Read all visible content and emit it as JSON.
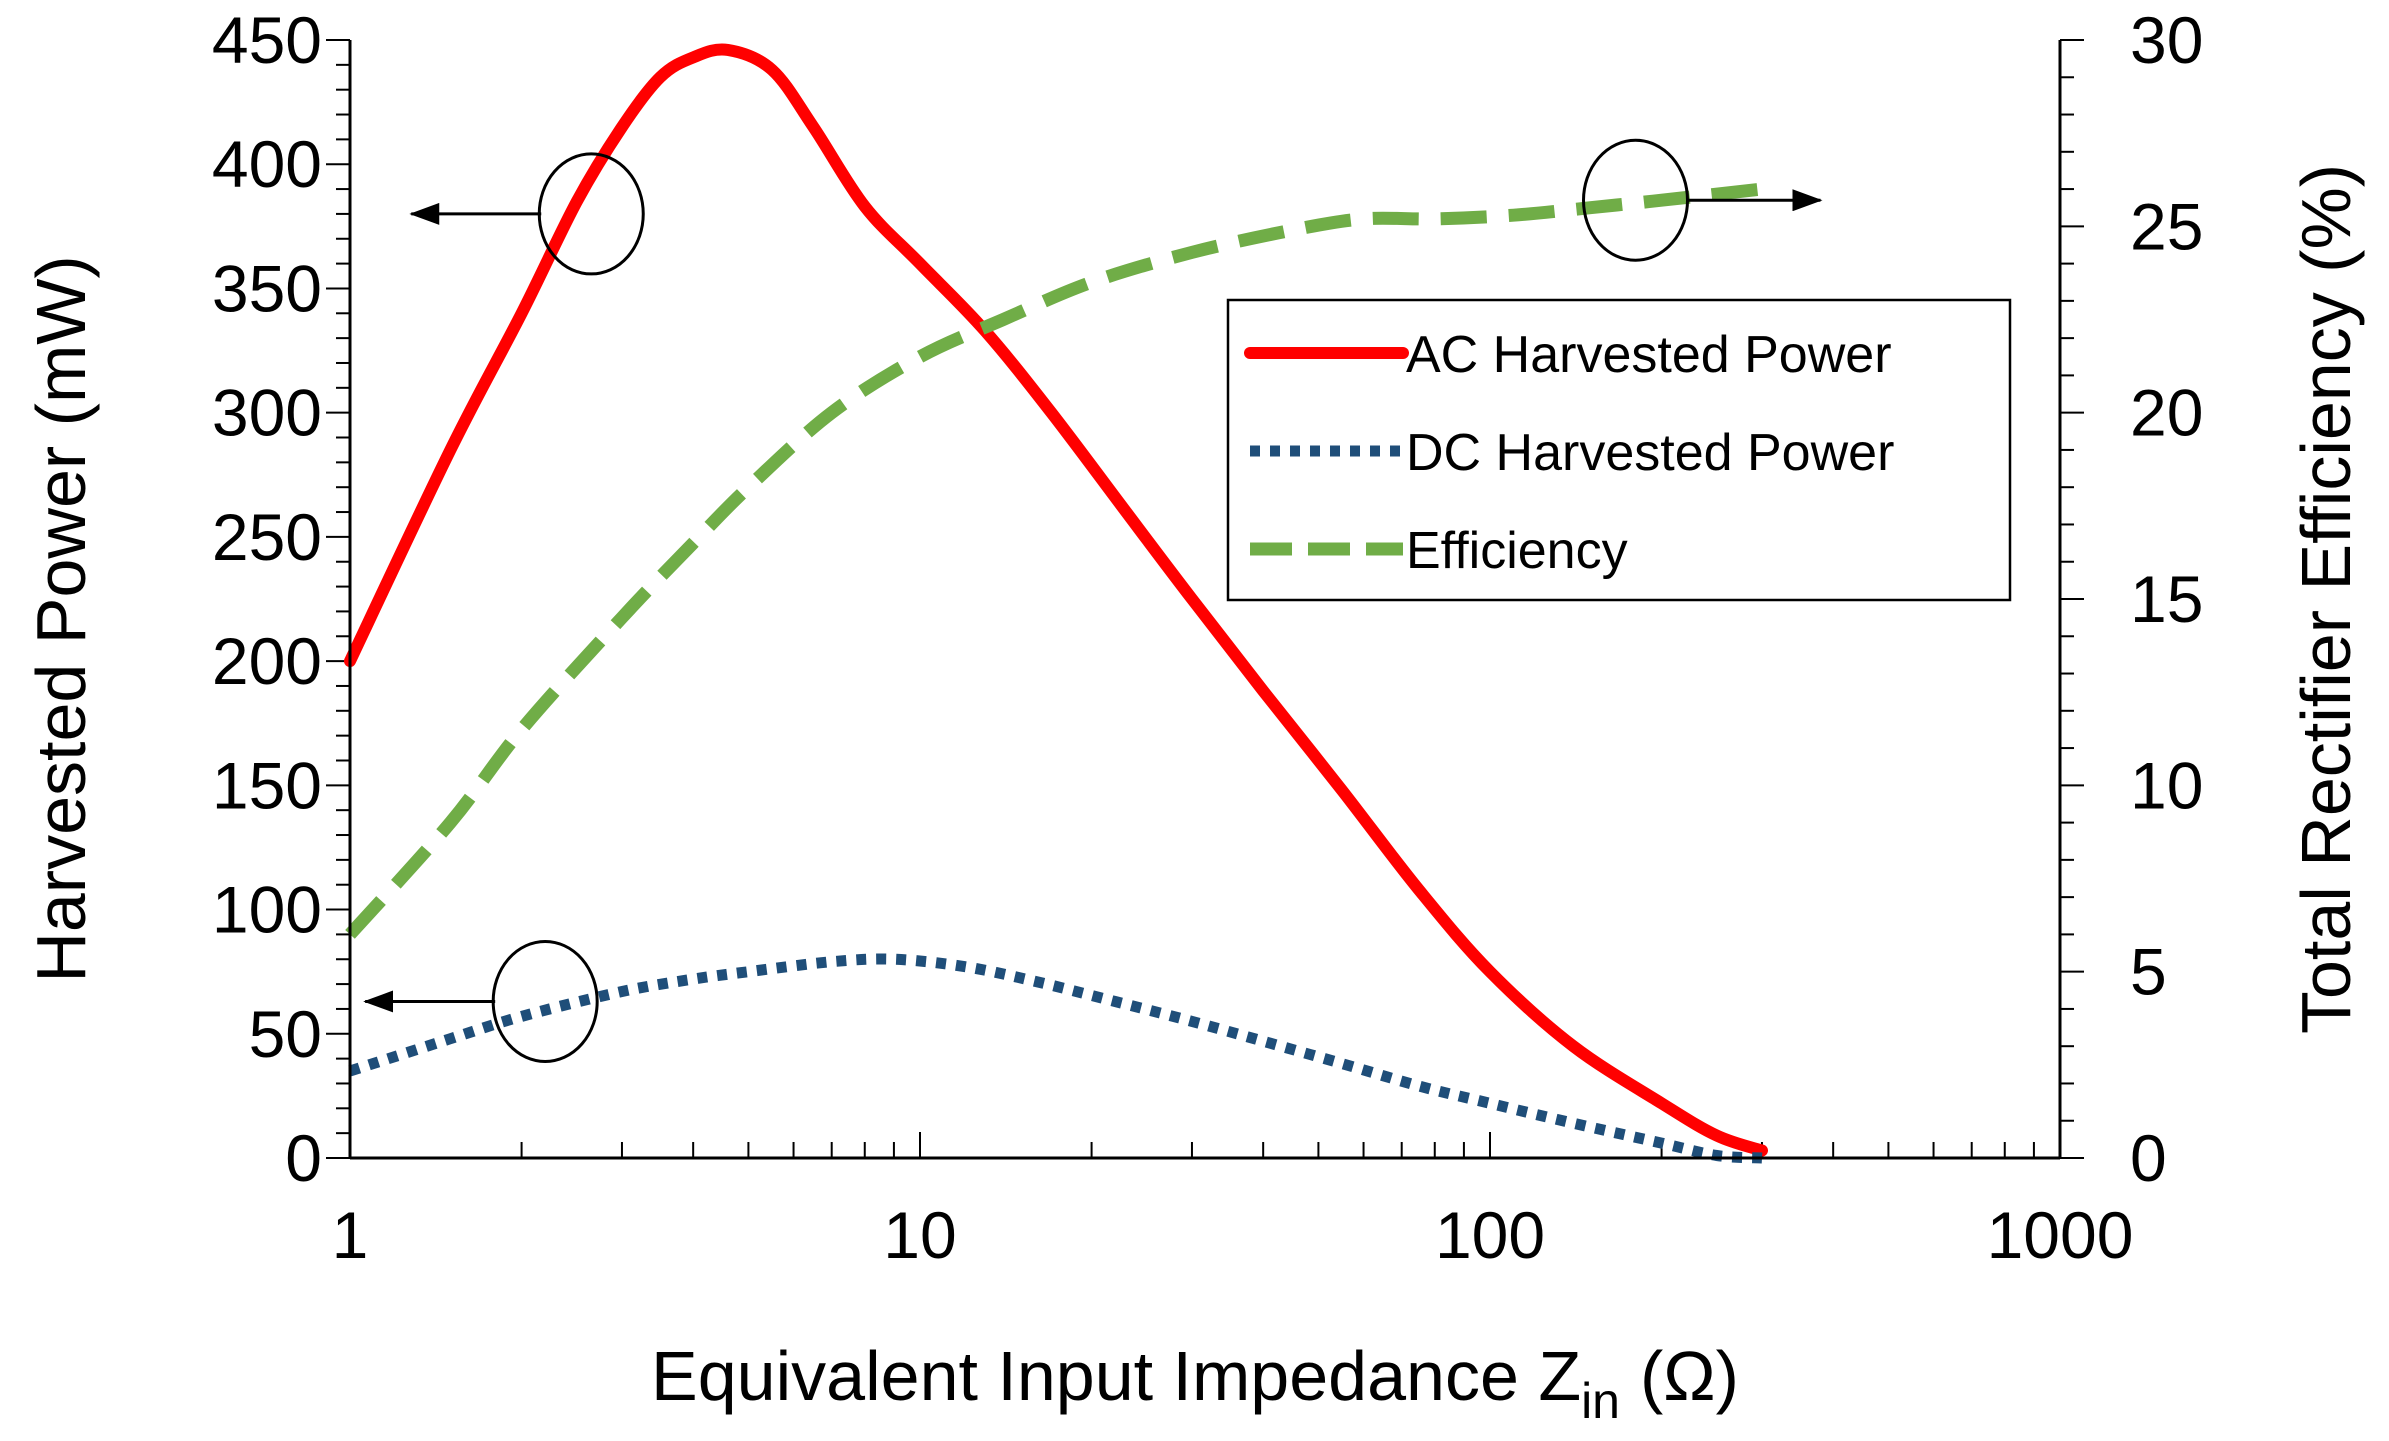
{
  "chart_data": {
    "type": "line",
    "xscale": "log",
    "xlabel": "Equivalent Input Impedance Z",
    "xlabel_sub": "in",
    "xlabel_unit": "(Ω)",
    "ylabel": "Harvested Power (mW)",
    "y2label": "Total Rectifier Efficiency (%)",
    "xlim": [
      1,
      1000
    ],
    "ylim": [
      0,
      450
    ],
    "y2lim": [
      0,
      30
    ],
    "x_ticks": [
      {
        "value": 1,
        "label": "1"
      },
      {
        "value": 10,
        "label": "10"
      },
      {
        "value": 100,
        "label": "100"
      },
      {
        "value": 1000,
        "label": "1000"
      }
    ],
    "y_ticks": [
      {
        "value": 0,
        "label": "0"
      },
      {
        "value": 50,
        "label": "50"
      },
      {
        "value": 100,
        "label": "100"
      },
      {
        "value": 150,
        "label": "150"
      },
      {
        "value": 200,
        "label": "200"
      },
      {
        "value": 250,
        "label": "250"
      },
      {
        "value": 300,
        "label": "300"
      },
      {
        "value": 350,
        "label": "350"
      },
      {
        "value": 400,
        "label": "400"
      },
      {
        "value": 450,
        "label": "450"
      }
    ],
    "y2_ticks": [
      {
        "value": 0,
        "label": "0"
      },
      {
        "value": 5,
        "label": "5"
      },
      {
        "value": 10,
        "label": "10"
      },
      {
        "value": 15,
        "label": "15"
      },
      {
        "value": 20,
        "label": "20"
      },
      {
        "value": 25,
        "label": "25"
      },
      {
        "value": 30,
        "label": "30"
      }
    ],
    "legend_position": "upper-right",
    "grid": false,
    "series": [
      {
        "name": "AC Harvested Power",
        "axis": "left",
        "style": "solid",
        "color": "#ff0000",
        "points": [
          [
            1,
            200
          ],
          [
            1.5,
            285
          ],
          [
            2,
            340
          ],
          [
            2.5,
            385
          ],
          [
            3,
            415
          ],
          [
            3.5,
            435
          ],
          [
            4,
            443
          ],
          [
            4.6,
            446
          ],
          [
            5.5,
            438
          ],
          [
            6.5,
            415
          ],
          [
            8,
            383
          ],
          [
            10,
            360
          ],
          [
            13,
            333
          ],
          [
            17,
            300
          ],
          [
            23,
            260
          ],
          [
            30,
            225
          ],
          [
            40,
            188
          ],
          [
            55,
            148
          ],
          [
            75,
            108
          ],
          [
            100,
            75
          ],
          [
            140,
            45
          ],
          [
            200,
            22
          ],
          [
            250,
            9
          ],
          [
            300,
            3
          ]
        ]
      },
      {
        "name": "DC Harvested Power",
        "axis": "left",
        "style": "dotted",
        "color": "#1f4e79",
        "points": [
          [
            1,
            35
          ],
          [
            1.5,
            48
          ],
          [
            2,
            57
          ],
          [
            3,
            67
          ],
          [
            4,
            72
          ],
          [
            5,
            75
          ],
          [
            7,
            79
          ],
          [
            9,
            80
          ],
          [
            12,
            77
          ],
          [
            16,
            71
          ],
          [
            22,
            63
          ],
          [
            30,
            55
          ],
          [
            40,
            47
          ],
          [
            55,
            38
          ],
          [
            75,
            29
          ],
          [
            100,
            22
          ],
          [
            140,
            14
          ],
          [
            200,
            6
          ],
          [
            250,
            1
          ],
          [
            300,
            0
          ]
        ]
      },
      {
        "name": "Efficiency",
        "axis": "right",
        "style": "dashed",
        "color": "#70ad47",
        "points": [
          [
            1,
            6
          ],
          [
            1.5,
            9
          ],
          [
            2,
            11.5
          ],
          [
            3,
            14.5
          ],
          [
            4,
            16.5
          ],
          [
            5,
            18
          ],
          [
            7,
            20
          ],
          [
            10,
            21.5
          ],
          [
            14,
            22.5
          ],
          [
            20,
            23.5
          ],
          [
            30,
            24.3
          ],
          [
            45,
            24.9
          ],
          [
            60,
            25.2
          ],
          [
            80,
            25.2
          ],
          [
            110,
            25.3
          ],
          [
            150,
            25.5
          ],
          [
            200,
            25.7
          ],
          [
            300,
            26
          ]
        ]
      }
    ],
    "annotations": [
      {
        "type": "ellipse-arrow",
        "series": "AC Harvested Power",
        "x": 2.65,
        "y": 380,
        "axis": "left",
        "direction": "left"
      },
      {
        "type": "ellipse-arrow",
        "series": "DC Harvested Power",
        "x": 2.2,
        "y": 63,
        "axis": "left",
        "direction": "left"
      },
      {
        "type": "ellipse-arrow",
        "series": "Efficiency",
        "x": 180,
        "y": 25.7,
        "axis": "right",
        "direction": "right"
      }
    ]
  }
}
